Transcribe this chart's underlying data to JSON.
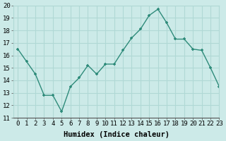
{
  "x": [
    0,
    1,
    2,
    3,
    4,
    5,
    6,
    7,
    8,
    9,
    10,
    11,
    12,
    13,
    14,
    15,
    16,
    17,
    18,
    19,
    20,
    21,
    22,
    23
  ],
  "y": [
    16.5,
    15.5,
    14.5,
    12.8,
    12.8,
    11.5,
    13.5,
    14.2,
    15.2,
    14.5,
    15.3,
    15.3,
    16.4,
    17.4,
    18.1,
    19.2,
    19.7,
    18.6,
    17.3,
    17.3,
    16.5,
    16.4,
    15.0,
    13.5
  ],
  "line_color": "#2e8b7a",
  "marker": "+",
  "bg_color": "#cceae8",
  "grid_color": "#b0d8d5",
  "xlabel": "Humidex (Indice chaleur)",
  "ylim": [
    11,
    20
  ],
  "xlim": [
    -0.5,
    23
  ],
  "yticks": [
    11,
    12,
    13,
    14,
    15,
    16,
    17,
    18,
    19,
    20
  ],
  "xticks": [
    0,
    1,
    2,
    3,
    4,
    5,
    6,
    7,
    8,
    9,
    10,
    11,
    12,
    13,
    14,
    15,
    16,
    17,
    18,
    19,
    20,
    21,
    22,
    23
  ],
  "xlabel_fontsize": 7.5,
  "tick_fontsize": 6.5,
  "linewidth": 1.0,
  "markersize": 3.5,
  "markeredgewidth": 1.2
}
